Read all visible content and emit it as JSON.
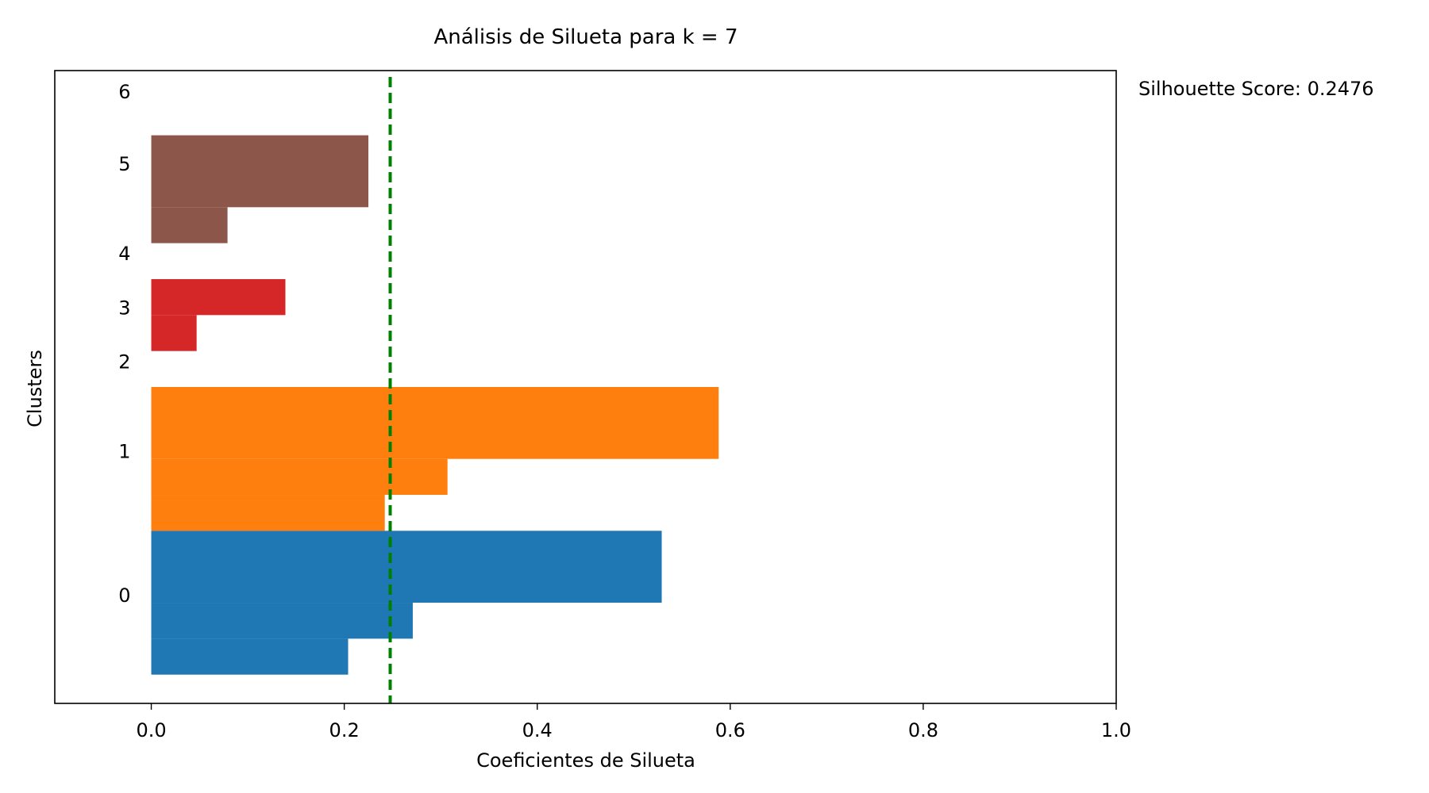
{
  "chart_data": {
    "type": "bar",
    "orientation": "horizontal",
    "title": "Análisis de Silueta para k = 7",
    "xlabel": "Coeficientes de Silueta",
    "ylabel": "Clusters",
    "xlim": [
      -0.1,
      1.0
    ],
    "ylim": [
      0,
      17.6
    ],
    "xticks": [
      0.0,
      0.2,
      0.4,
      0.6,
      0.8,
      1.0
    ],
    "xtick_labels": [
      "0.0",
      "0.2",
      "0.4",
      "0.6",
      "0.8",
      "1.0"
    ],
    "average_line": {
      "value": 0.2476,
      "color": "#008000",
      "style": "dashed"
    },
    "annotation": "Silhouette Score: 0.2476",
    "grid": false,
    "clusters": [
      {
        "label": "0",
        "color": "#1f77b4",
        "label_position": 3.0,
        "samples": [
          {
            "y_start": 0.8,
            "y_end": 1.8,
            "value": 0.204
          },
          {
            "y_start": 1.8,
            "y_end": 2.8,
            "value": 0.271
          },
          {
            "y_start": 2.8,
            "y_end": 4.8,
            "value": 0.529
          }
        ]
      },
      {
        "label": "1",
        "color": "#ff7f0e",
        "label_position": 7.0,
        "samples": [
          {
            "y_start": 4.8,
            "y_end": 5.8,
            "value": 0.242
          },
          {
            "y_start": 5.8,
            "y_end": 6.8,
            "value": 0.307
          },
          {
            "y_start": 6.8,
            "y_end": 8.8,
            "value": 0.588
          }
        ]
      },
      {
        "label": "2",
        "color": "#d62728",
        "label_position": 9.5,
        "samples": [
          {
            "y_start": 9.8,
            "y_end": 10.8,
            "value": 0.047
          }
        ]
      },
      {
        "label": "3",
        "color": "#d62728",
        "label_position": 11.0,
        "samples": [
          {
            "y_start": 10.8,
            "y_end": 11.8,
            "value": 0.139
          }
        ]
      },
      {
        "label": "4",
        "color": "#8c564b",
        "label_position": 12.5,
        "samples": [
          {
            "y_start": 12.8,
            "y_end": 13.8,
            "value": 0.079
          }
        ]
      },
      {
        "label": "5",
        "color": "#8c564b",
        "label_position": 15.0,
        "samples": [
          {
            "y_start": 13.8,
            "y_end": 15.8,
            "value": 0.225
          }
        ]
      },
      {
        "label": "6",
        "color": "#8c564b",
        "label_position": 17.0,
        "samples": []
      }
    ]
  }
}
